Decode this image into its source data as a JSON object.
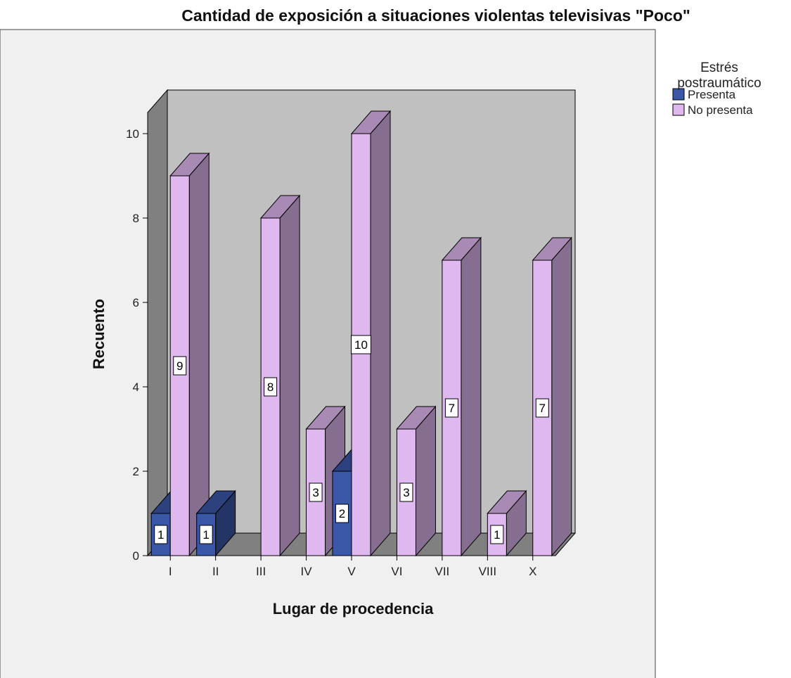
{
  "chart_data": {
    "type": "bar3d",
    "title": "Cantidad de exposición a situaciones violentas televisivas \"Poco\"",
    "x_label": "Lugar de procedencia",
    "y_label": "Recuento",
    "legend_title": "Estrés postraumático",
    "categories": [
      "I",
      "II",
      "III",
      "IV",
      "V",
      "VI",
      "VII",
      "VIII",
      "X"
    ],
    "series": [
      {
        "name": "Presenta",
        "color": "#3a57a8",
        "values": [
          1,
          1,
          null,
          null,
          2,
          null,
          null,
          null,
          null
        ]
      },
      {
        "name": "No presenta",
        "color": "#e0b8f0",
        "values": [
          9,
          null,
          8,
          3,
          10,
          3,
          7,
          1,
          7
        ]
      }
    ],
    "ylim": [
      0,
      10.5
    ],
    "yticks": [
      0,
      2,
      4,
      6,
      8,
      10
    ],
    "legend": "right"
  }
}
